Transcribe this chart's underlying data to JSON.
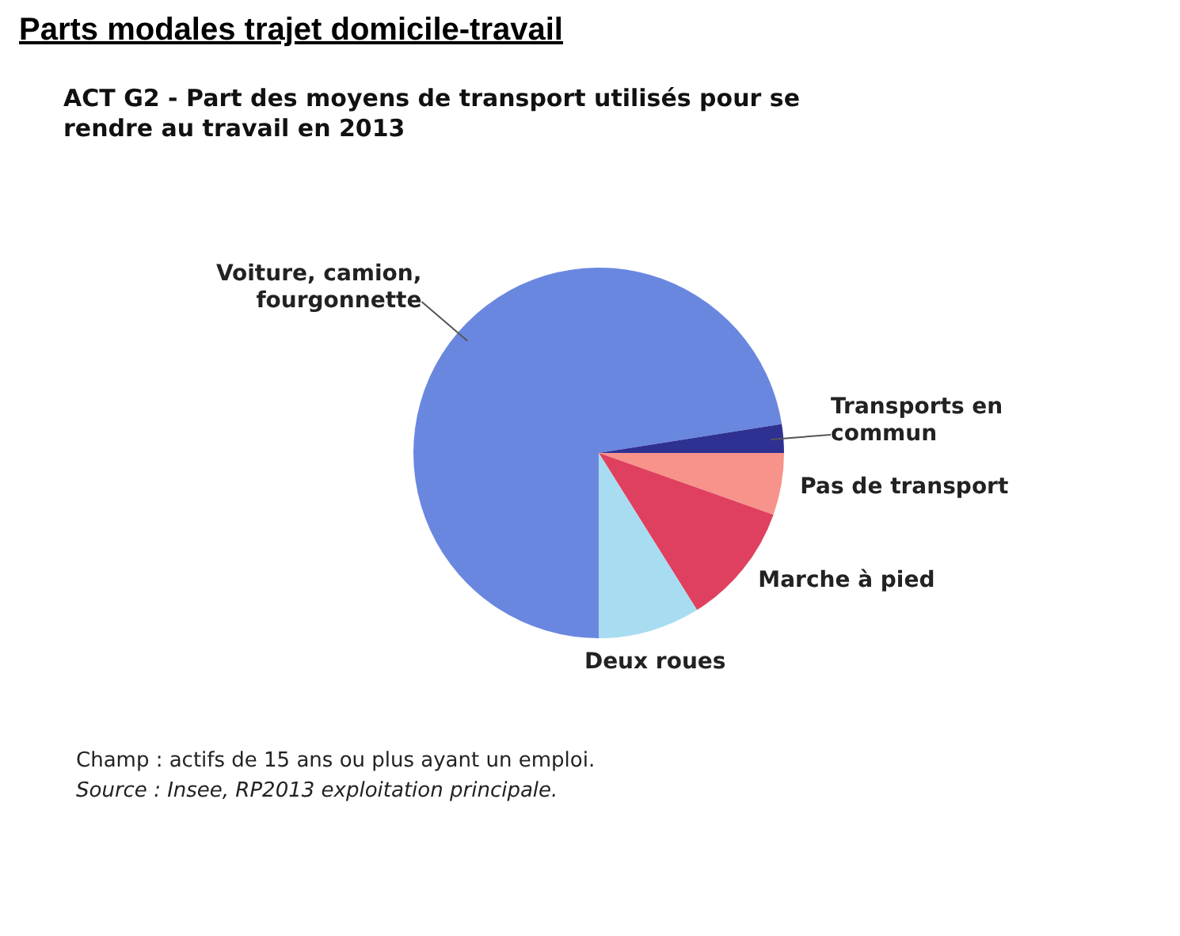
{
  "chart_data": {
    "type": "pie",
    "title": "Parts modales trajet domicile-travail",
    "subtitle": "ACT G2 - Part des moyens de transport utilisés pour se rendre au travail en 2013",
    "categories": [
      "Voiture, camion, fourgonnette",
      "Transports en commun",
      "Pas de transport",
      "Marche à pied",
      "Deux roues"
    ],
    "values": [
      72.5,
      2.5,
      5.4,
      10.7,
      8.9
    ],
    "colors": [
      "#6a87e0",
      "#2e3192",
      "#f7938a",
      "#e0405f",
      "#a8dcf0"
    ],
    "annotations": [
      "Champ : actifs de 15 ans ou plus ayant un emploi.",
      "Source : Insee, RP2013 exploitation principale."
    ]
  }
}
